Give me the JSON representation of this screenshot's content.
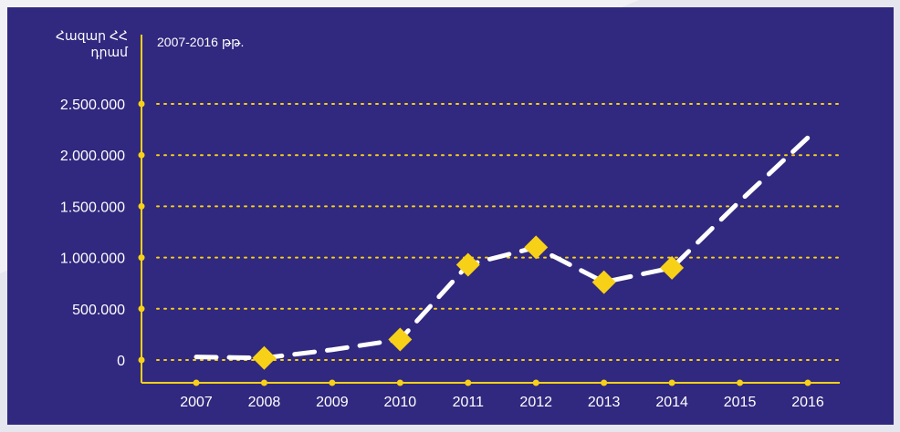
{
  "colors": {
    "background": "#31287f",
    "axis": "#f7d117",
    "marker": "#f7d117",
    "line": "#ffffff",
    "text": "#ffffff"
  },
  "chart_data": {
    "type": "line",
    "title": "",
    "subtitle": "2007-2016 թթ.",
    "ylabel": "Հազար ՀՀ դրամ",
    "ylabel_lines": [
      "Հազար ՀՀ",
      "դրամ"
    ],
    "xlabel": "",
    "categories": [
      "2007",
      "2008",
      "2009",
      "2010",
      "2011",
      "2012",
      "2013",
      "2014",
      "2015",
      "2016"
    ],
    "values": [
      30000,
      20000,
      100000,
      200000,
      930000,
      1100000,
      760000,
      900000,
      1550000,
      2170000
    ],
    "markers": [
      false,
      true,
      false,
      true,
      true,
      true,
      true,
      true,
      false,
      false
    ],
    "ylim": [
      0,
      2500000
    ],
    "yticks": [
      0,
      500000,
      1000000,
      1500000,
      2000000,
      2500000
    ],
    "ytick_labels": [
      "0",
      "500.000",
      "1.000.000",
      "1.500.000",
      "2.000.000",
      "2.500.000"
    ],
    "grid": true,
    "line_style": "dashed",
    "legend": "none"
  }
}
